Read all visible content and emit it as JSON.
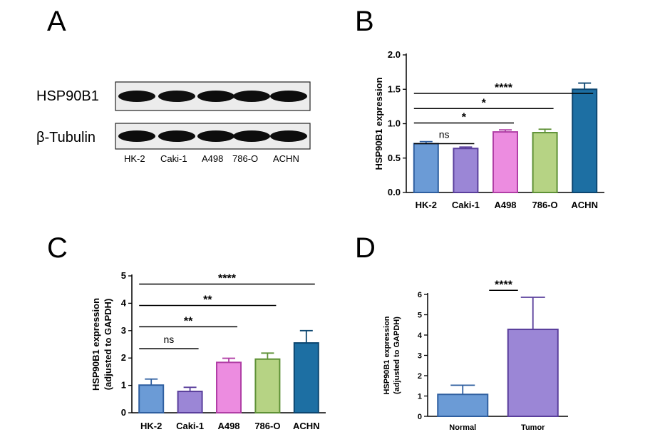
{
  "panels": {
    "A": "A",
    "B": "B",
    "C": "C",
    "D": "D"
  },
  "blot": {
    "rows": [
      "HSP90B1",
      "β-Tubulin"
    ],
    "lanes": [
      "HK-2",
      "Caki-1",
      "A498",
      "786-O",
      "ACHN"
    ],
    "band_intensity": [
      [
        0.85,
        0.8,
        0.9,
        0.88,
        0.92
      ],
      [
        0.9,
        0.9,
        0.9,
        0.9,
        0.9
      ]
    ]
  },
  "chart_data": [
    {
      "panel": "B",
      "type": "bar",
      "categories": [
        "HK-2",
        "Caki-1",
        "A498",
        "786-O",
        "ACHN"
      ],
      "values": [
        0.71,
        0.64,
        0.88,
        0.87,
        1.5
      ],
      "errors": [
        0.03,
        0.02,
        0.03,
        0.05,
        0.09
      ],
      "colors": [
        "#6b9bd6",
        "#9b86d6",
        "#ec8ce0",
        "#b6d384",
        "#1d6fa3"
      ],
      "edge_colors": [
        "#2f5fa0",
        "#5a3f9c",
        "#b13fa6",
        "#5e9136",
        "#0c4670"
      ],
      "ylabel": "HSP90B1 expression",
      "ylim": [
        0,
        2.0
      ],
      "yticks": [
        "0.0",
        "0.5",
        "1.0",
        "1.5",
        "2.0"
      ],
      "comparisons": [
        {
          "from": 0,
          "to": 1,
          "label": "ns",
          "level": 0.71
        },
        {
          "from": 0,
          "to": 2,
          "label": "*",
          "level": 1.01
        },
        {
          "from": 0,
          "to": 3,
          "label": "*",
          "level": 1.22
        },
        {
          "from": 0,
          "to": 4,
          "label": "****",
          "level": 1.44
        }
      ]
    },
    {
      "panel": "C",
      "type": "bar",
      "categories": [
        "HK-2",
        "Caki-1",
        "A498",
        "786-O",
        "ACHN"
      ],
      "values": [
        1.01,
        0.78,
        1.84,
        1.96,
        2.55
      ],
      "errors": [
        0.22,
        0.15,
        0.15,
        0.22,
        0.45
      ],
      "colors": [
        "#6b9bd6",
        "#9b86d6",
        "#ec8ce0",
        "#b6d384",
        "#1d6fa3"
      ],
      "edge_colors": [
        "#2f5fa0",
        "#5a3f9c",
        "#b13fa6",
        "#5e9136",
        "#0c4670"
      ],
      "ylabel": [
        "HSP90B1 expression",
        "(adjusted to GAPDH)"
      ],
      "ylim": [
        0,
        5
      ],
      "yticks": [
        "0",
        "1",
        "2",
        "3",
        "4",
        "5"
      ],
      "comparisons": [
        {
          "from": 0,
          "to": 1,
          "label": "ns",
          "level": 2.34
        },
        {
          "from": 0,
          "to": 2,
          "label": "**",
          "level": 3.14
        },
        {
          "from": 0,
          "to": 3,
          "label": "**",
          "level": 3.92
        },
        {
          "from": 0,
          "to": 4,
          "label": "****",
          "level": 4.7
        }
      ]
    },
    {
      "panel": "D",
      "type": "bar",
      "categories": [
        "Normal",
        "Tumor"
      ],
      "values": [
        1.08,
        4.28
      ],
      "errors": [
        0.45,
        1.58
      ],
      "colors": [
        "#6b9bd6",
        "#9b86d6"
      ],
      "edge_colors": [
        "#2f5fa0",
        "#5a3f9c"
      ],
      "ylabel": [
        "HSP90B1 expression",
        "(adjusted to GAPDH)"
      ],
      "ylim": [
        0,
        6
      ],
      "yticks": [
        "0",
        "1",
        "2",
        "3",
        "4",
        "5",
        "6"
      ],
      "comparisons": [
        {
          "from": 0,
          "to": 1,
          "label": "****",
          "level": 6.2
        }
      ]
    }
  ]
}
